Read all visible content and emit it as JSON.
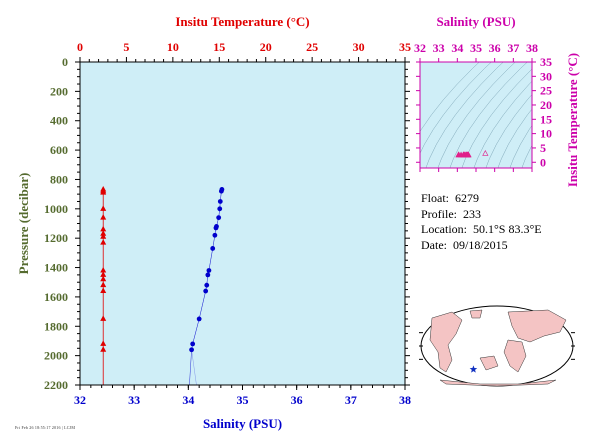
{
  "colors": {
    "plot_bg": "#cfeef7",
    "temperature": "#e00000",
    "salinity": "#0000cc",
    "inset_axis": "#cc00aa",
    "pressure_axis": "#556b2f",
    "land": "#f4c4c4"
  },
  "info": {
    "float_label": "Float:",
    "float_value": "6279",
    "profile_label": "Profile:",
    "profile_value": "233",
    "location_label": "Location:",
    "location_value": "50.1°S  83.3°E",
    "date_label": "Date:",
    "date_value": "09/18/2015"
  },
  "stamp": "Fri Feb 26 18:55:17 2016 | LCJM",
  "chart_data": [
    {
      "type": "scatter",
      "title": "",
      "ylabel": "Pressure (decibar)",
      "ylim": [
        2200,
        0
      ],
      "yticks": [
        0,
        200,
        400,
        600,
        800,
        1000,
        1200,
        1400,
        1600,
        1800,
        2000,
        2200
      ],
      "top_axis": {
        "label": "Insitu Temperature (°C)",
        "range": [
          0,
          35
        ],
        "ticks": [
          0,
          5,
          10,
          15,
          20,
          25,
          30,
          35
        ]
      },
      "bottom_axis": {
        "label": "Salinity (PSU)",
        "range": [
          32,
          38
        ],
        "ticks": [
          32,
          33,
          34,
          35,
          36,
          37,
          38
        ]
      },
      "grid": false,
      "series": [
        {
          "marker": "triangle",
          "pressure": [
            868,
            880,
            890,
            1000,
            1060,
            1140,
            1170,
            1190,
            1230,
            1420,
            1450,
            1480,
            1520,
            1560,
            1750,
            1920,
            1960
          ],
          "temperature": [
            2.5,
            2.5,
            2.5,
            2.5,
            2.5,
            2.5,
            2.5,
            2.5,
            2.5,
            2.5,
            2.5,
            2.5,
            2.5,
            2.5,
            2.5,
            2.5,
            2.5
          ]
        },
        {
          "marker": "circle",
          "pressure": [
            868,
            880,
            950,
            1000,
            1060,
            1120,
            1130,
            1180,
            1270,
            1420,
            1450,
            1520,
            1560,
            1750,
            1920,
            1960
          ],
          "salinity": [
            34.62,
            34.61,
            34.59,
            34.58,
            34.56,
            34.52,
            34.51,
            34.49,
            34.45,
            34.38,
            34.36,
            34.34,
            34.32,
            34.2,
            34.08,
            34.06
          ]
        }
      ]
    },
    {
      "type": "scatter",
      "title": "",
      "top_axis": {
        "label": "Salinity (PSU)",
        "range": [
          32,
          38
        ],
        "ticks": [
          32,
          33,
          34,
          35,
          36,
          37,
          38
        ]
      },
      "right_axis": {
        "label": "Insitu Temperature (°C)",
        "range": [
          -2,
          35
        ],
        "ticks": [
          0,
          5,
          10,
          15,
          20,
          25,
          30,
          35
        ]
      },
      "grid": false,
      "series": [
        {
          "marker": "triangle",
          "salinity": [
            34.06,
            34.08,
            34.2,
            34.32,
            34.34,
            34.36,
            34.38,
            34.45,
            34.49,
            34.51,
            34.52,
            34.56,
            34.58,
            34.6,
            35.5
          ],
          "temperature": [
            2.5,
            2.5,
            2.5,
            2.5,
            2.5,
            2.5,
            2.5,
            2.5,
            2.5,
            2.5,
            2.5,
            2.5,
            2.5,
            2.5,
            3.0
          ]
        }
      ]
    },
    {
      "type": "map",
      "marker": {
        "lat": -50.1,
        "lon": 83.3,
        "shape": "star"
      }
    }
  ]
}
